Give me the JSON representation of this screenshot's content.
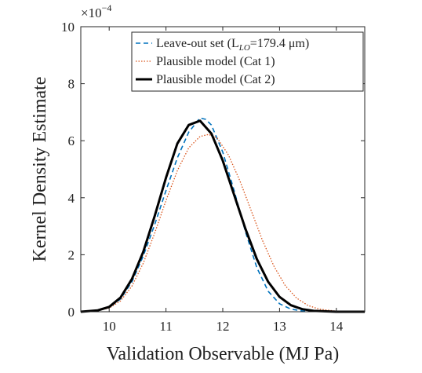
{
  "chart_data": {
    "type": "line",
    "xlabel": "Validation Observable (MJ Pa)",
    "ylabel": "Kernel Density Estimate",
    "xlim": [
      9.5,
      14.5
    ],
    "ylim": [
      0,
      10
    ],
    "y_scale_exponent_label": "×10",
    "y_scale_exponent": "−4",
    "x_ticks": [
      "10",
      "11",
      "12",
      "13",
      "14"
    ],
    "y_ticks": [
      "0",
      "2",
      "4",
      "6",
      "8",
      "10"
    ],
    "grid": false,
    "legend_position": "top-right",
    "series": [
      {
        "name": "Leave-out set (L",
        "name_sub": "LO",
        "name_suffix": "=179.4 μm)",
        "style": "dashed",
        "color": "#0072BD",
        "x": [
          9.5,
          9.8,
          10.0,
          10.2,
          10.4,
          10.6,
          10.8,
          11.0,
          11.2,
          11.4,
          11.6,
          11.7,
          11.8,
          12.0,
          12.2,
          12.4,
          12.6,
          12.8,
          13.0,
          13.2,
          13.4,
          13.6,
          14.0,
          14.5
        ],
        "y": [
          0.0,
          0.05,
          0.15,
          0.45,
          1.05,
          1.95,
          3.05,
          4.25,
          5.4,
          6.3,
          6.8,
          6.75,
          6.55,
          5.6,
          4.25,
          2.8,
          1.55,
          0.72,
          0.28,
          0.09,
          0.03,
          0.01,
          0.0,
          0.0
        ]
      },
      {
        "name": "Plausible model (Cat 1)",
        "style": "dotted",
        "color": "#D95319",
        "x": [
          9.5,
          9.8,
          10.0,
          10.2,
          10.4,
          10.6,
          10.8,
          11.0,
          11.2,
          11.4,
          11.6,
          11.75,
          11.9,
          12.1,
          12.3,
          12.5,
          12.7,
          12.9,
          13.1,
          13.3,
          13.5,
          13.7,
          14.0,
          14.5
        ],
        "y": [
          0.0,
          0.04,
          0.13,
          0.38,
          0.9,
          1.7,
          2.75,
          3.9,
          4.95,
          5.75,
          6.15,
          6.22,
          6.1,
          5.5,
          4.6,
          3.55,
          2.5,
          1.6,
          0.92,
          0.48,
          0.22,
          0.09,
          0.02,
          0.0
        ]
      },
      {
        "name": "Plausible model (Cat 2)",
        "style": "solid",
        "color": "#000000",
        "x": [
          9.5,
          9.8,
          10.0,
          10.2,
          10.4,
          10.6,
          10.8,
          11.0,
          11.2,
          11.4,
          11.6,
          11.8,
          12.0,
          12.2,
          12.4,
          12.6,
          12.8,
          13.0,
          13.2,
          13.4,
          13.6,
          14.0,
          14.5
        ],
        "y": [
          0.0,
          0.05,
          0.17,
          0.5,
          1.15,
          2.1,
          3.35,
          4.7,
          5.9,
          6.55,
          6.7,
          6.25,
          5.3,
          4.1,
          2.9,
          1.85,
          1.05,
          0.52,
          0.23,
          0.09,
          0.03,
          0.0,
          0.0
        ]
      }
    ]
  }
}
